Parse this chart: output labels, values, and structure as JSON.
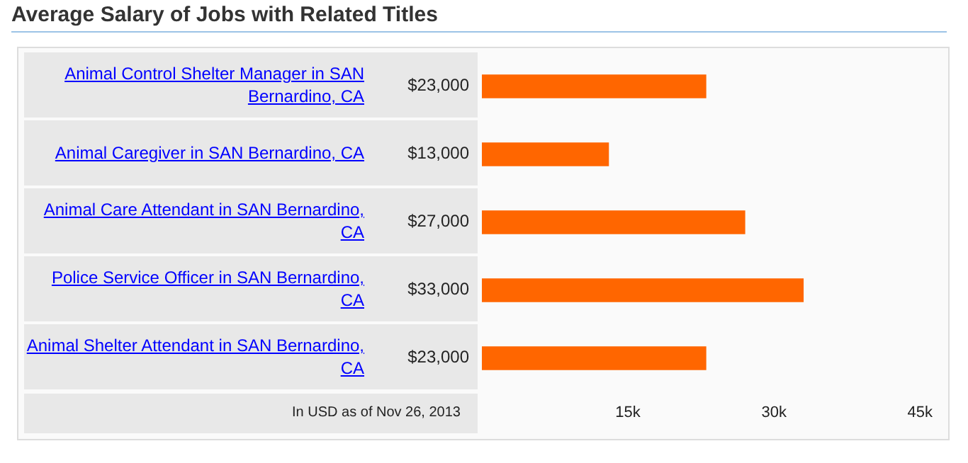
{
  "chart_data": {
    "type": "bar",
    "orientation": "horizontal",
    "title": "Average Salary of Jobs with Related Titles",
    "categories": [
      "Animal Control Shelter Manager in SAN Bernardino, CA",
      "Animal Caregiver in SAN Bernardino, CA",
      "Animal Care Attendant in SAN Bernardino, CA",
      "Police Service Officer in SAN Bernardino, CA",
      "Animal Shelter Attendant in SAN Bernardino, CA"
    ],
    "values": [
      23000,
      13000,
      27000,
      33000,
      23000
    ],
    "value_labels": [
      "$23,000",
      "$13,000",
      "$27,000",
      "$33,000",
      "$23,000"
    ],
    "color": "#ff6600",
    "xlim": [
      0,
      45000
    ],
    "xticks": [
      {
        "value": 15000,
        "label": "15k"
      },
      {
        "value": 30000,
        "label": "30k"
      },
      {
        "value": 45000,
        "label": "45k"
      }
    ],
    "annotations": [
      "In USD as of Nov 26, 2013"
    ],
    "grid": false,
    "legend": false
  }
}
